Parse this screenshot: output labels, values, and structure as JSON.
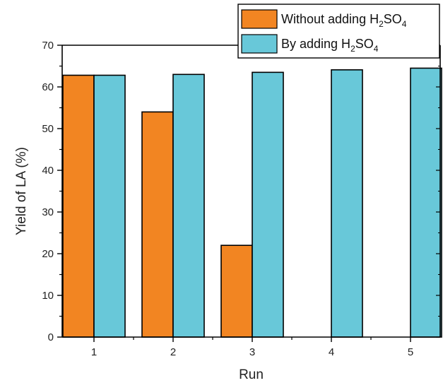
{
  "chart_data": {
    "type": "bar",
    "categories": [
      "1",
      "2",
      "3",
      "4",
      "5"
    ],
    "series": [
      {
        "name": "Without adding H2SO4",
        "name_main": "Without adding H",
        "name_sub1": "2",
        "name_mid": "SO",
        "name_sub2": "4",
        "values": [
          62.8,
          54.0,
          22.0,
          0,
          0
        ],
        "color": "#f28522"
      },
      {
        "name": "By adding H2SO4",
        "name_main": "By adding H",
        "name_sub1": "2",
        "name_mid": "SO",
        "name_sub2": "4",
        "values": [
          62.8,
          63.0,
          63.5,
          64.1,
          64.5
        ],
        "color": "#68c8d9"
      }
    ],
    "xlabel": "Run",
    "ylabel": "Yield of LA (%)",
    "ylim": [
      0,
      70
    ],
    "yticks": [
      0,
      10,
      20,
      30,
      40,
      50,
      60,
      70
    ],
    "grid": false,
    "legend_position": "top-right"
  }
}
